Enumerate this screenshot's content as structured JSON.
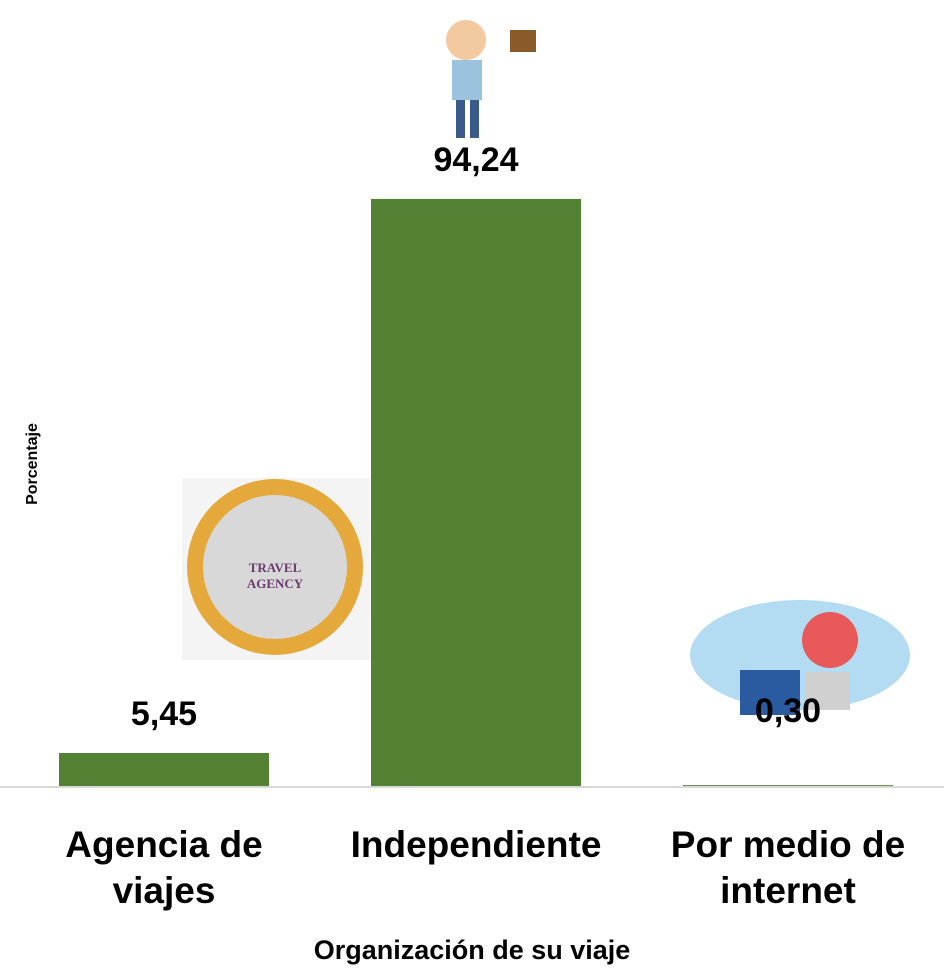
{
  "chart_data": {
    "type": "bar",
    "x_label": "Organización de su viaje",
    "y_label": "Porcentaje",
    "categories": [
      "Agencia de viajes",
      "Independiente",
      "Por medio de internet"
    ],
    "values": [
      5.45,
      94.24,
      0.3
    ],
    "value_labels": [
      "5,45",
      "94,24",
      "0,30"
    ],
    "color": "#548235",
    "ylim": [
      0,
      100
    ]
  }
}
